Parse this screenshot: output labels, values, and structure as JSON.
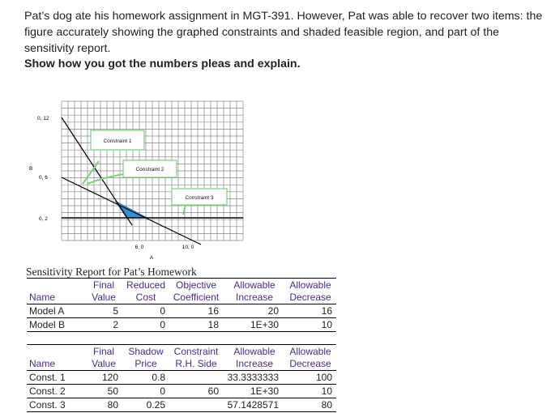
{
  "intro": "Pat’s dog ate his homework assignment in MGT-391. However, Pat was able to recover two items: the figure accurately showing the graphed constraints and shaded feasible region, and part of the sensitivity report.",
  "ask": "Show how you got the numbers pleas and explain.",
  "graph": {
    "y_ticks": [
      "0, 12",
      "0, 6",
      "0, 2"
    ],
    "y_axis_label": "B",
    "x_ticks": [
      "6, 0",
      "10, 0"
    ],
    "x_axis_label": "A",
    "callouts": [
      "Constraint 1",
      "Constraint 2",
      "Constraint 3"
    ],
    "feasible_color": "#3b8fd0",
    "callout_color": "#7fcf7f"
  },
  "report": {
    "title": "Sensitivity Report for Pat’s Homework",
    "var_header1": [
      "",
      "Final",
      "Reduced",
      "Objective",
      "Allowable",
      "Allowable"
    ],
    "var_header2": [
      "Name",
      "Value",
      "Cost",
      "Coefficient",
      "Increase",
      "Decrease"
    ],
    "var_rows": [
      [
        "Model A",
        "5",
        "0",
        "16",
        "20",
        "16"
      ],
      [
        "Model B",
        "2",
        "0",
        "18",
        "1E+30",
        "10"
      ]
    ],
    "con_header1": [
      "",
      "Final",
      "Shadow",
      "Constraint",
      "Allowable",
      "Allowable"
    ],
    "con_header2": [
      "Name",
      "Value",
      "Price",
      "R.H. Side",
      "Increase",
      "Decrease"
    ],
    "con_rows": [
      [
        "Const. 1",
        "120",
        "0.8",
        "",
        "33.3333333",
        "100"
      ],
      [
        "Const. 2",
        "50",
        "0",
        "60",
        "1E+30",
        "10"
      ],
      [
        "Const. 3",
        "80",
        "0.25",
        "",
        "57.1428571",
        "80"
      ]
    ]
  }
}
